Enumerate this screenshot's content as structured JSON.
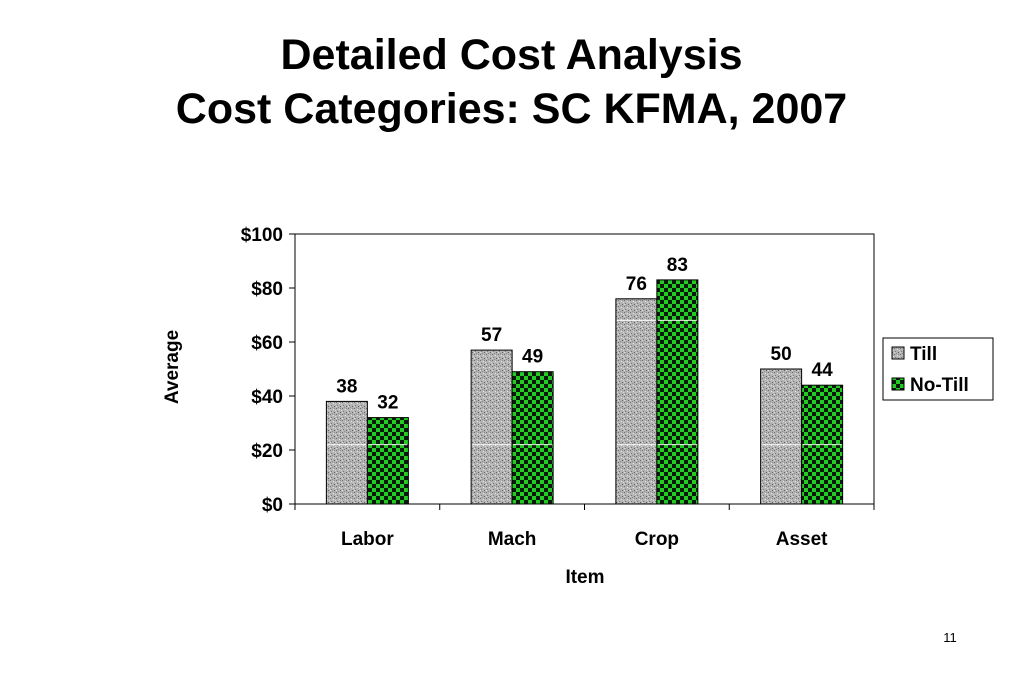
{
  "slide": {
    "title_line1": "Detailed Cost Analysis",
    "title_line2": "Cost Categories: SC KFMA, 2007",
    "page_number": "11"
  },
  "chart_data": {
    "type": "bar",
    "title": "",
    "xlabel": "Item",
    "ylabel": "Average",
    "categories": [
      "Labor",
      "Mach",
      "Crop",
      "Asset"
    ],
    "series": [
      {
        "name": "Till",
        "values": [
          38,
          57,
          76,
          50
        ],
        "labels": [
          "38",
          "57",
          "76",
          "50"
        ],
        "color": "#a8a8a8"
      },
      {
        "name": "No-Till",
        "values": [
          32,
          49,
          83,
          44
        ],
        "labels": [
          "32",
          "49",
          "83",
          "44"
        ],
        "color": "#22cc22"
      }
    ],
    "ylim": [
      0,
      100
    ],
    "yticks": [
      "$0",
      "$20",
      "$40",
      "$60",
      "$80",
      "$100"
    ],
    "grid": false,
    "legend": "right"
  }
}
